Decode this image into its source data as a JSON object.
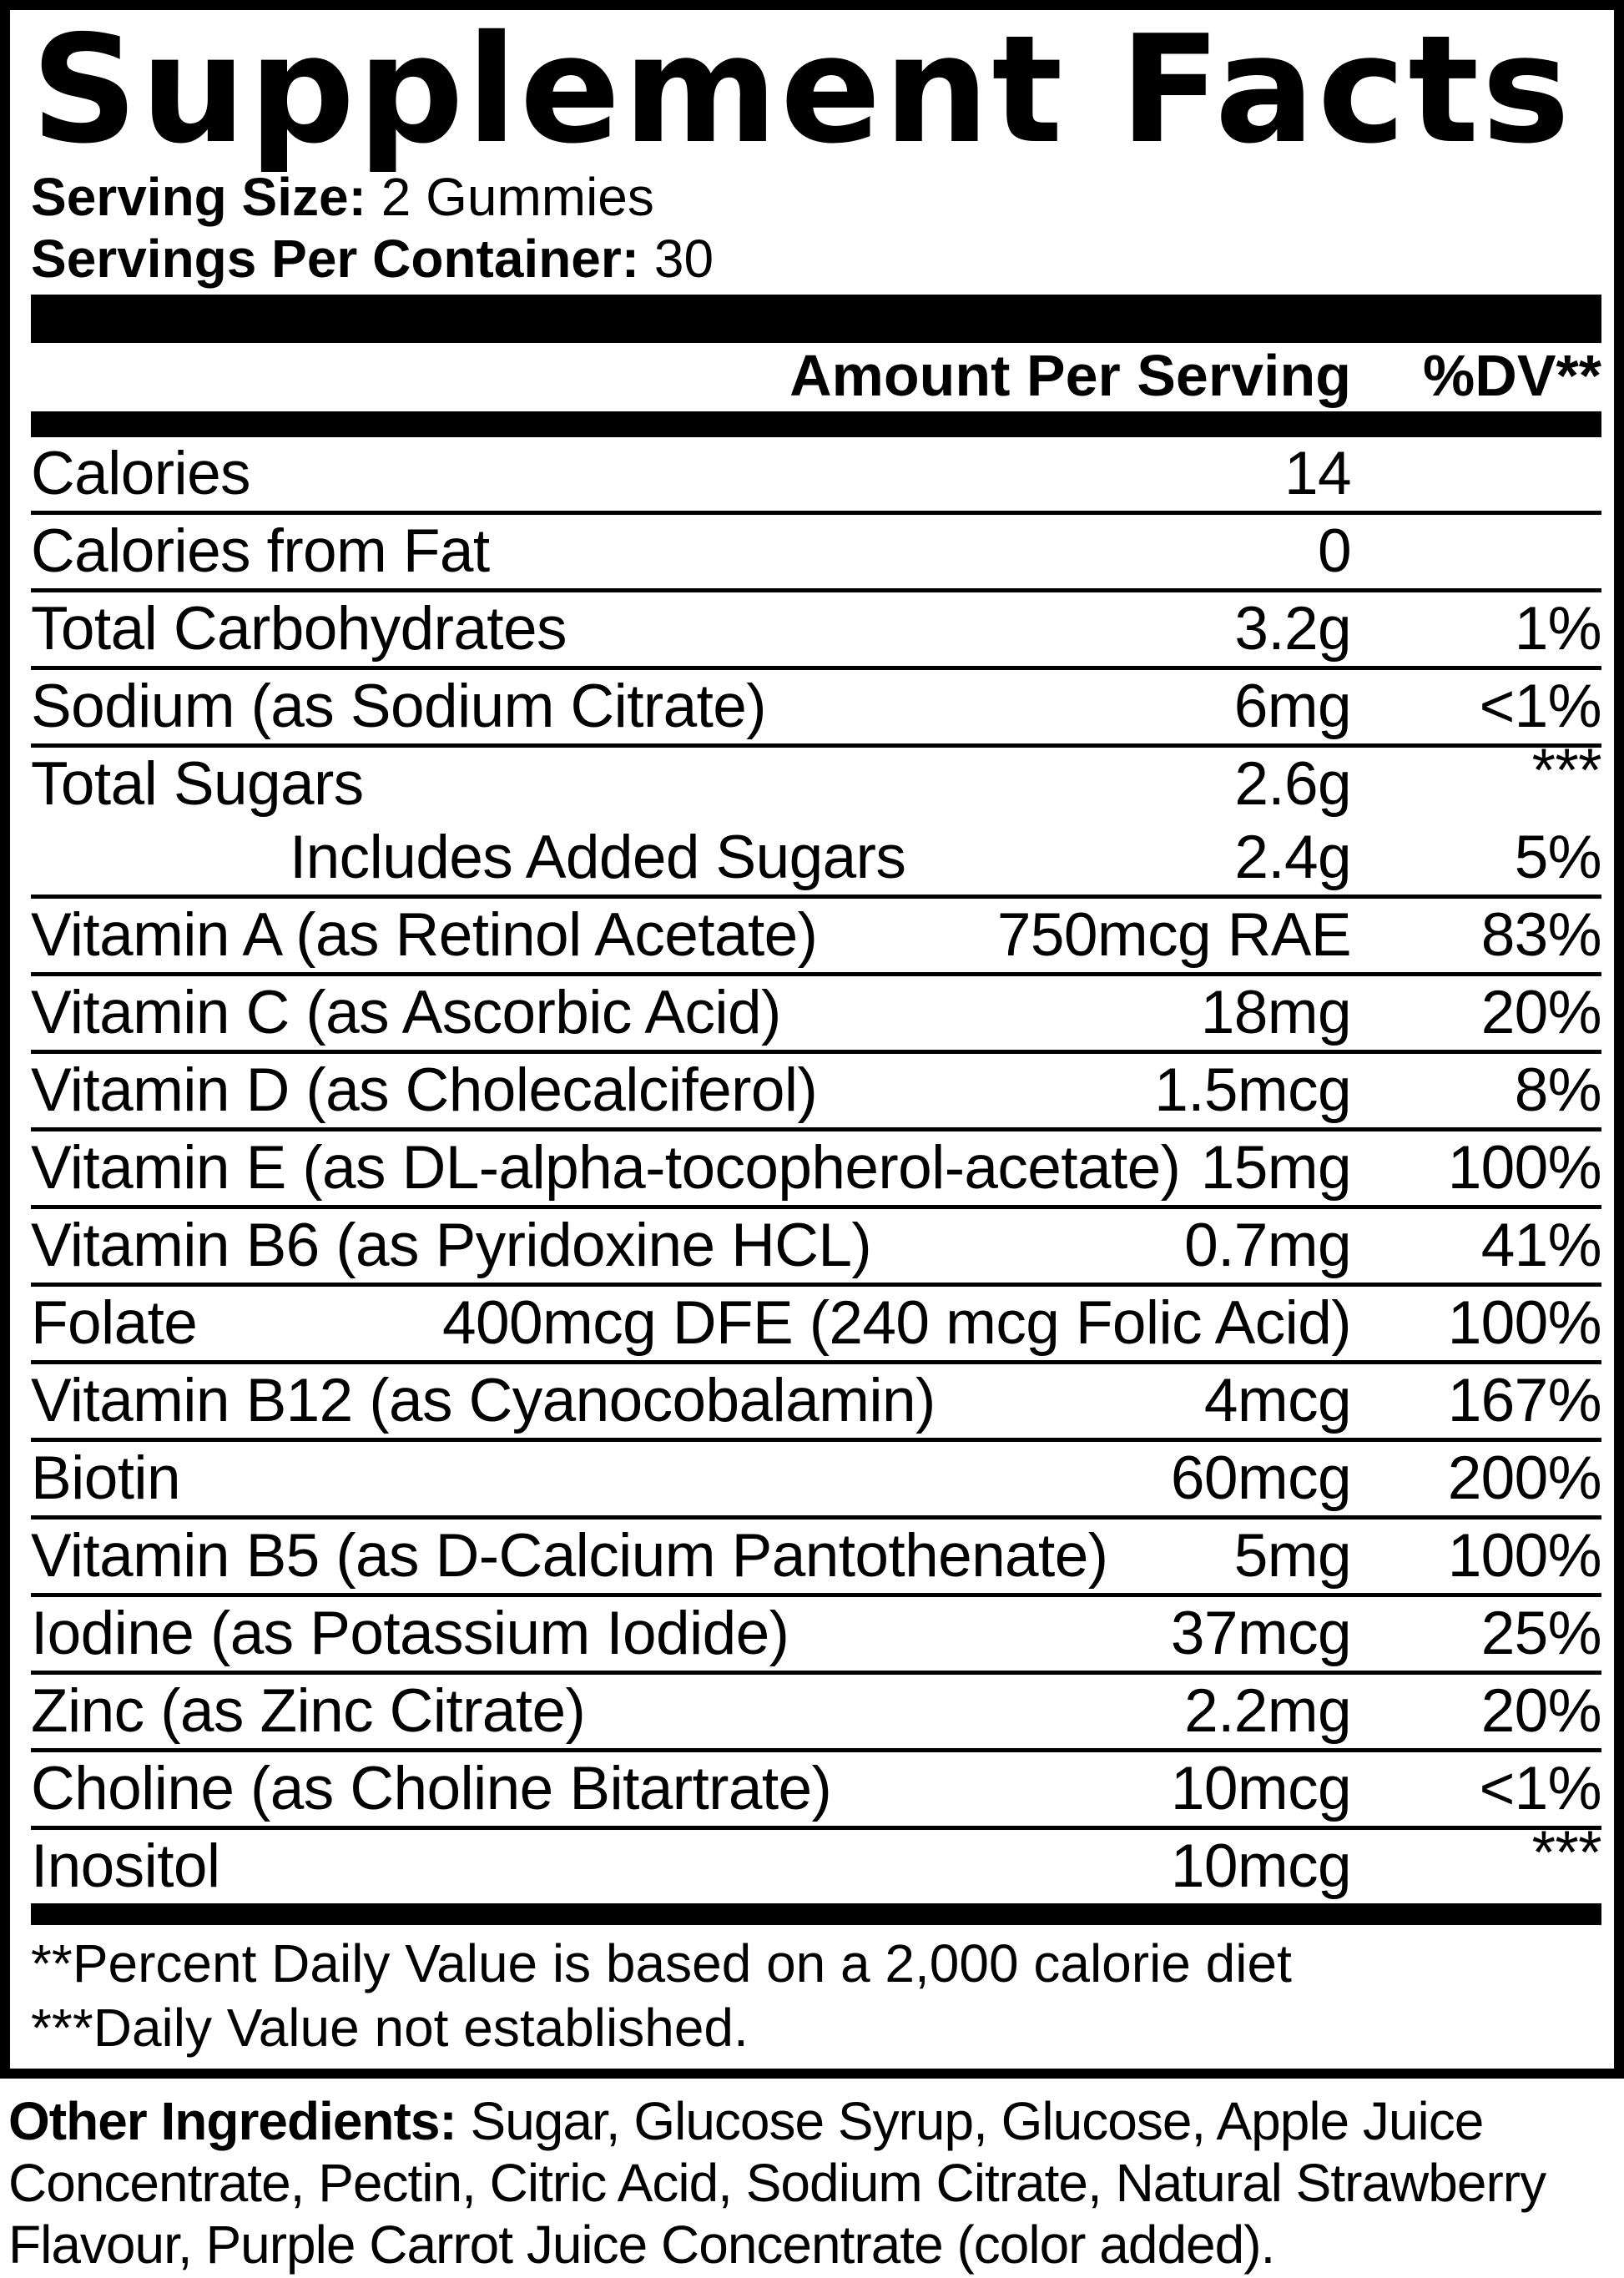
{
  "label": {
    "title": "Supplement Facts",
    "serving": {
      "size_label": "Serving Size:",
      "size_value": "2 Gummies",
      "per_container_label": "Servings Per Container:",
      "per_container_value": "30"
    },
    "columns": {
      "amount": "Amount Per Serving",
      "dv": "%DV**"
    },
    "rows": [
      {
        "name": "Calories",
        "amount": "14",
        "dv": ""
      },
      {
        "name": "Calories from Fat",
        "amount": "0",
        "dv": ""
      },
      {
        "name": "Total Carbohydrates",
        "amount": "3.2g",
        "dv": "1%"
      },
      {
        "name": "Sodium (as Sodium Citrate)",
        "amount": "6mg",
        "dv": "<1%"
      },
      {
        "name": "Total Sugars",
        "amount": "2.6g",
        "dv": "***",
        "nosep": true
      },
      {
        "name": "Includes Added Sugars",
        "amount": "2.4g",
        "dv": "5%",
        "indent": true
      },
      {
        "name": "Vitamin A (as Retinol Acetate)",
        "amount": "750mcg RAE",
        "dv": "83%"
      },
      {
        "name": "Vitamin C (as Ascorbic Acid)",
        "amount": "18mg",
        "dv": "20%"
      },
      {
        "name": "Vitamin D (as Cholecalciferol)",
        "amount": "1.5mcg",
        "dv": "8%"
      },
      {
        "name": "Vitamin E (as DL-alpha-tocopherol-acetate)",
        "amount": "15mg",
        "dv": "100%"
      },
      {
        "name": "Vitamin B6 (as Pyridoxine HCL)",
        "amount": "0.7mg",
        "dv": "41%"
      },
      {
        "name": "Folate",
        "amount": "400mcg DFE (240 mcg Folic Acid)",
        "dv": "100%"
      },
      {
        "name": "Vitamin B12 (as Cyanocobalamin)",
        "amount": "4mcg",
        "dv": "167%"
      },
      {
        "name": "Biotin",
        "amount": "60mcg",
        "dv": "200%"
      },
      {
        "name": "Vitamin B5 (as D-Calcium Pantothenate)",
        "amount": "5mg",
        "dv": "100%"
      },
      {
        "name": "Iodine (as Potassium Iodide)",
        "amount": "37mcg",
        "dv": "25%"
      },
      {
        "name": "Zinc (as Zinc Citrate)",
        "amount": "2.2mg",
        "dv": "20%"
      },
      {
        "name": "Choline (as Choline Bitartrate)",
        "amount": "10mcg",
        "dv": "<1%"
      },
      {
        "name": "Inositol",
        "amount": "10mcg",
        "dv": "***"
      }
    ],
    "footnotes": [
      "**Percent Daily Value is based on a 2,000 calorie diet",
      "***Daily Value not established."
    ],
    "other_ingredients": {
      "label": "Other Ingredients:",
      "text": "Sugar, Glucose Syrup, Glucose, Apple Juice Concentrate, Pectin, Citric Acid, Sodium Citrate, Natural Strawberry Flavour, Purple Carrot Juice Concentrate (color added)."
    },
    "colors": {
      "ink": "#000000",
      "paper": "#ffffff"
    }
  }
}
